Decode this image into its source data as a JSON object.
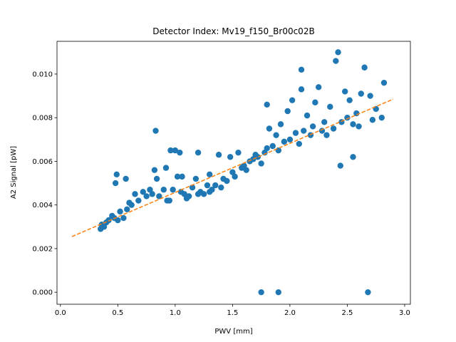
{
  "chart_data": {
    "type": "scatter",
    "title": "Detector Index: Mv19_f150_Br00c02B",
    "xlabel": "PWV [mm]",
    "ylabel": "A2 Signal [pW]",
    "xlim": [
      -0.03,
      3.05
    ],
    "ylim": [
      -0.00055,
      0.0115
    ],
    "xticks": [
      0.0,
      0.5,
      1.0,
      1.5,
      2.0,
      2.5,
      3.0
    ],
    "xtick_labels": [
      "0.0",
      "0.5",
      "1.0",
      "1.5",
      "2.0",
      "2.5",
      "3.0"
    ],
    "yticks": [
      0.0,
      0.002,
      0.004,
      0.006,
      0.008,
      0.01
    ],
    "ytick_labels": [
      "0.000",
      "0.002",
      "0.004",
      "0.006",
      "0.008",
      "0.010"
    ],
    "series": [
      {
        "name": "measurements",
        "kind": "scatter",
        "color": "#1f77b4",
        "points": [
          [
            0.35,
            0.0029
          ],
          [
            0.36,
            0.0031
          ],
          [
            0.38,
            0.003
          ],
          [
            0.4,
            0.0032
          ],
          [
            0.42,
            0.0033
          ],
          [
            0.45,
            0.0035
          ],
          [
            0.47,
            0.0034
          ],
          [
            0.48,
            0.005
          ],
          [
            0.49,
            0.0054
          ],
          [
            0.5,
            0.0033
          ],
          [
            0.52,
            0.0037
          ],
          [
            0.55,
            0.0034
          ],
          [
            0.57,
            0.0052
          ],
          [
            0.58,
            0.0038
          ],
          [
            0.6,
            0.0041
          ],
          [
            0.62,
            0.004
          ],
          [
            0.65,
            0.0045
          ],
          [
            0.68,
            0.0042
          ],
          [
            0.72,
            0.0046
          ],
          [
            0.75,
            0.0044
          ],
          [
            0.78,
            0.0047
          ],
          [
            0.8,
            0.0045
          ],
          [
            0.83,
            0.0074
          ],
          [
            0.82,
            0.0056
          ],
          [
            0.84,
            0.0052
          ],
          [
            0.86,
            0.0044
          ],
          [
            0.9,
            0.0047
          ],
          [
            0.92,
            0.0057
          ],
          [
            0.93,
            0.0042
          ],
          [
            0.95,
            0.0042
          ],
          [
            0.96,
            0.0065
          ],
          [
            0.98,
            0.0047
          ],
          [
            1.0,
            0.0065
          ],
          [
            1.02,
            0.0053
          ],
          [
            1.04,
            0.0064
          ],
          [
            1.05,
            0.0046
          ],
          [
            1.06,
            0.0053
          ],
          [
            1.08,
            0.0045
          ],
          [
            1.1,
            0.0043
          ],
          [
            1.12,
            0.0044
          ],
          [
            1.15,
            0.0048
          ],
          [
            1.18,
            0.0052
          ],
          [
            1.2,
            0.0045
          ],
          [
            1.2,
            0.0064
          ],
          [
            1.22,
            0.0046
          ],
          [
            1.25,
            0.0045
          ],
          [
            1.28,
            0.0049
          ],
          [
            1.3,
            0.0054
          ],
          [
            1.3,
            0.0046
          ],
          [
            1.32,
            0.0047
          ],
          [
            1.35,
            0.0049
          ],
          [
            1.38,
            0.0063
          ],
          [
            1.4,
            0.0048
          ],
          [
            1.42,
            0.0052
          ],
          [
            1.45,
            0.0051
          ],
          [
            1.48,
            0.0062
          ],
          [
            1.5,
            0.0055
          ],
          [
            1.52,
            0.0053
          ],
          [
            1.55,
            0.0064
          ],
          [
            1.58,
            0.0057
          ],
          [
            1.6,
            0.0058
          ],
          [
            1.62,
            0.0056
          ],
          [
            1.65,
            0.006
          ],
          [
            1.68,
            0.0061
          ],
          [
            1.7,
            0.0063
          ],
          [
            1.72,
            0.0062
          ],
          [
            1.75,
            0.0059
          ],
          [
            1.75,
            0.0
          ],
          [
            1.78,
            0.0064
          ],
          [
            1.8,
            0.0066
          ],
          [
            1.8,
            0.0086
          ],
          [
            1.82,
            0.0075
          ],
          [
            1.85,
            0.0067
          ],
          [
            1.88,
            0.0072
          ],
          [
            1.9,
            0.0065
          ],
          [
            1.9,
            0.0
          ],
          [
            1.92,
            0.0077
          ],
          [
            1.95,
            0.0069
          ],
          [
            1.98,
            0.0083
          ],
          [
            2.0,
            0.007
          ],
          [
            2.02,
            0.0088
          ],
          [
            2.05,
            0.0073
          ],
          [
            2.08,
            0.0068
          ],
          [
            2.1,
            0.0093
          ],
          [
            2.1,
            0.0102
          ],
          [
            2.12,
            0.0074
          ],
          [
            2.15,
            0.0081
          ],
          [
            2.18,
            0.0072
          ],
          [
            2.2,
            0.0076
          ],
          [
            2.22,
            0.0087
          ],
          [
            2.25,
            0.0094
          ],
          [
            2.28,
            0.0074
          ],
          [
            2.3,
            0.0078
          ],
          [
            2.32,
            0.0072
          ],
          [
            2.35,
            0.0085
          ],
          [
            2.38,
            0.0075
          ],
          [
            2.4,
            0.0106
          ],
          [
            2.42,
            0.011
          ],
          [
            2.44,
            0.0058
          ],
          [
            2.45,
            0.0078
          ],
          [
            2.48,
            0.0092
          ],
          [
            2.5,
            0.008
          ],
          [
            2.52,
            0.0088
          ],
          [
            2.55,
            0.0062
          ],
          [
            2.55,
            0.0077
          ],
          [
            2.58,
            0.0082
          ],
          [
            2.6,
            0.0076
          ],
          [
            2.62,
            0.0091
          ],
          [
            2.65,
            0.0103
          ],
          [
            2.68,
            0.0
          ],
          [
            2.7,
            0.009
          ],
          [
            2.72,
            0.0079
          ],
          [
            2.75,
            0.0084
          ],
          [
            2.8,
            0.008
          ],
          [
            2.82,
            0.0096
          ]
        ]
      },
      {
        "name": "fit",
        "kind": "line",
        "style": "dashed",
        "color": "#ff7f0e",
        "x": [
          0.1,
          2.9
        ],
        "y": [
          0.00255,
          0.00885
        ]
      }
    ]
  }
}
